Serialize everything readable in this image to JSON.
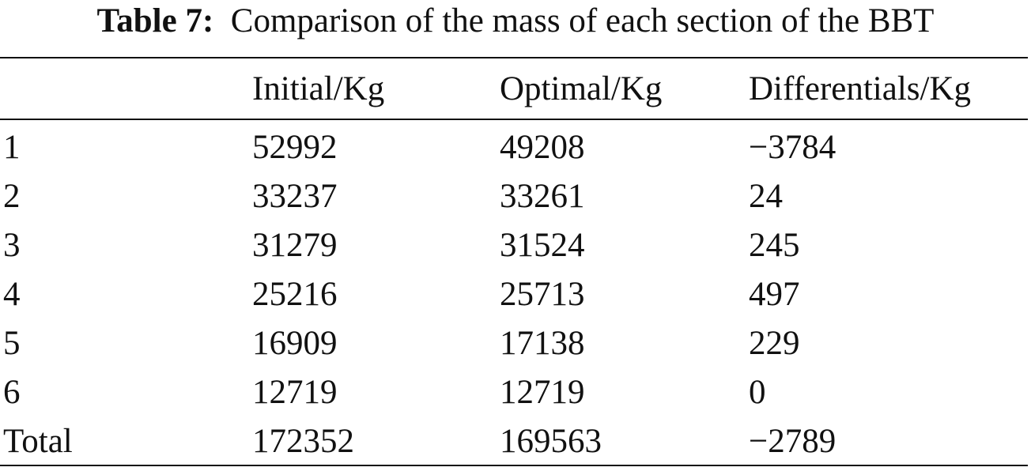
{
  "caption": {
    "label": "Table 7:",
    "text": "Comparison of the mass of each section of the BBT"
  },
  "table": {
    "columns": [
      "",
      "Initial/Kg",
      "Optimal/Kg",
      "Differentials/Kg"
    ],
    "rows": [
      [
        "1",
        "52992",
        "49208",
        "−3784"
      ],
      [
        "2",
        "33237",
        "33261",
        "24"
      ],
      [
        "3",
        "31279",
        "31524",
        "245"
      ],
      [
        "4",
        "25216",
        "25713",
        "497"
      ],
      [
        "5",
        "16909",
        "17138",
        "229"
      ],
      [
        "6",
        "12719",
        "12719",
        "0"
      ],
      [
        "Total",
        "172352",
        "169563",
        "−2789"
      ]
    ]
  }
}
